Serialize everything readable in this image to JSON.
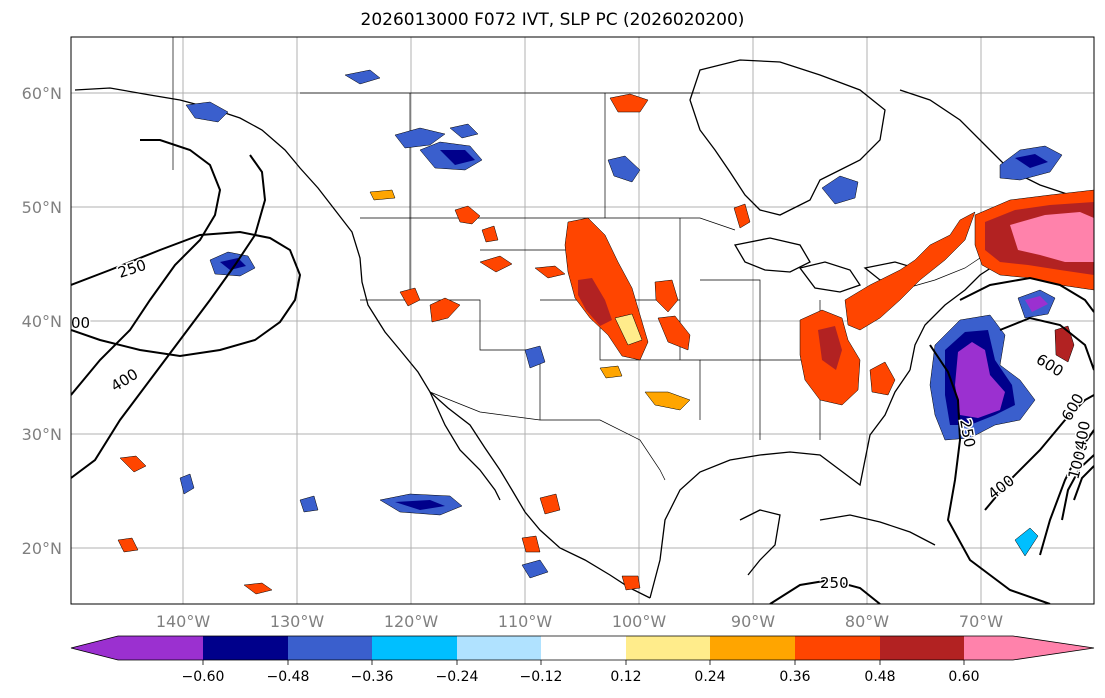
{
  "title": "2026013000 F072 IVT, SLP PC (2026020200)",
  "lat_labels": [
    "60°N",
    "50°N",
    "40°N",
    "30°N",
    "20°N"
  ],
  "lon_labels": [
    "140°W",
    "130°W",
    "120°W",
    "110°W",
    "100°W",
    "90°W",
    "80°W",
    "70°W"
  ],
  "contour_labels": [
    "250",
    "400",
    "400",
    "250",
    "600",
    "600",
    "1000",
    "400",
    "250",
    "00"
  ],
  "colorbar": {
    "ticks": [
      "−0.60",
      "−0.48",
      "−0.36",
      "−0.24",
      "−0.12",
      "0.12",
      "0.24",
      "0.36",
      "0.48",
      "0.60"
    ],
    "colors": [
      "#9b30d0",
      "#00008b",
      "#3a5fcd",
      "#00bfff",
      "#b0e2ff",
      "#ffffff",
      "#ffec8b",
      "#ffa500",
      "#ff4500",
      "#b22222",
      "#ff82ab"
    ]
  },
  "colors": {
    "neg_purple": "#9b30d0",
    "neg_navy": "#00008b",
    "neg_blue": "#3a5fcd",
    "neg_sky": "#00bfff",
    "neg_light": "#b0e2ff",
    "pos_yellow": "#ffec8b",
    "pos_orange": "#ffa500",
    "pos_redorange": "#ff4500",
    "pos_darkred": "#b22222",
    "pos_pink": "#ff82ab"
  }
}
